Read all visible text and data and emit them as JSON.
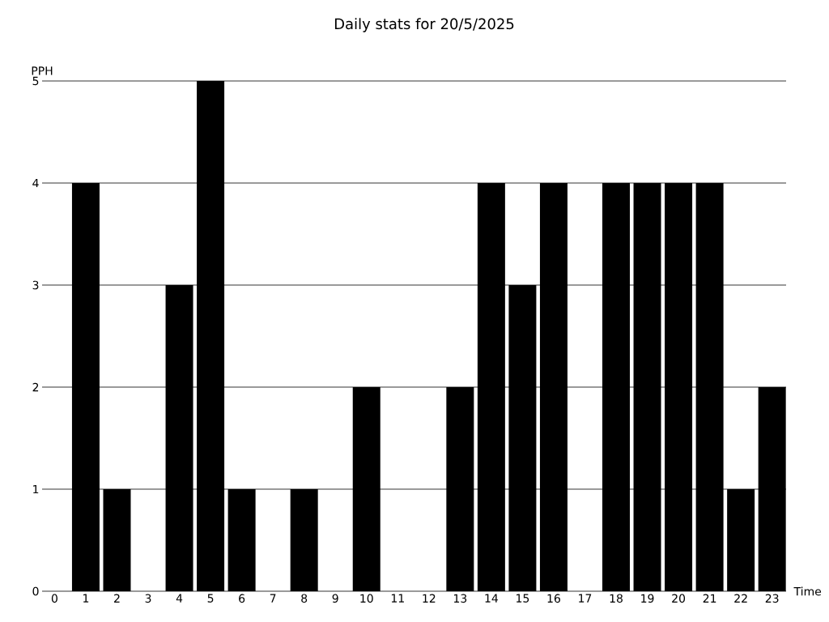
{
  "chart_data": {
    "type": "bar",
    "title": "Daily stats for 20/5/2025",
    "xlabel": "Time",
    "ylabel": "PPH",
    "categories": [
      "0",
      "1",
      "2",
      "3",
      "4",
      "5",
      "6",
      "7",
      "8",
      "9",
      "10",
      "11",
      "12",
      "13",
      "14",
      "15",
      "16",
      "17",
      "18",
      "19",
      "20",
      "21",
      "22",
      "23"
    ],
    "values": [
      0,
      4,
      1,
      0,
      3,
      5,
      1,
      0,
      1,
      0,
      2,
      0,
      0,
      2,
      4,
      3,
      4,
      0,
      4,
      4,
      4,
      4,
      1,
      2
    ],
    "color": "#000000",
    "ylim": [
      0,
      5
    ],
    "yticks": [
      0,
      1,
      2,
      3,
      4,
      5
    ],
    "grid": "y"
  }
}
